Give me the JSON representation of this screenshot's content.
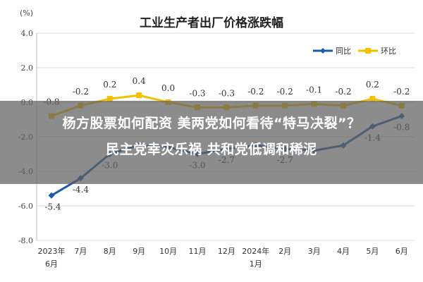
{
  "chart_data": {
    "type": "line",
    "title": "工业生产者出厂价格涨跌幅",
    "ylabel": "(%)",
    "ylim": [
      -8.0,
      4.0
    ],
    "yticks": [
      "4.0",
      "2.0",
      "0.0",
      "-2.0",
      "-4.0",
      "-6.0",
      "-8.0"
    ],
    "ytick_values": [
      4,
      2,
      0,
      -2,
      -4,
      -6,
      -8
    ],
    "categories": [
      "2023年6月",
      "7月",
      "8月",
      "9月",
      "10月",
      "11月",
      "12月",
      "2024年1月",
      "2月",
      "3月",
      "4月",
      "5月",
      "6月"
    ],
    "category_lines": [
      [
        "2023年",
        "6月"
      ],
      [
        "7月"
      ],
      [
        "8月"
      ],
      [
        "9月"
      ],
      [
        "10月"
      ],
      [
        "11月"
      ],
      [
        "12月"
      ],
      [
        "2024年",
        "1月"
      ],
      [
        "2月"
      ],
      [
        "3月"
      ],
      [
        "4月"
      ],
      [
        "5月"
      ],
      [
        "6月"
      ]
    ],
    "legend_position": "top-right",
    "series": [
      {
        "name": "同比",
        "color": "#1f5aa6",
        "values": [
          -5.4,
          -4.4,
          -3.0,
          -2.5,
          -2.6,
          -3.0,
          -2.7,
          -2.5,
          -2.7,
          -2.8,
          -2.5,
          -1.4,
          -0.8
        ],
        "labels": [
          "-5.4",
          "-4.4",
          "-3.0",
          "",
          "",
          "-3.0",
          "-2.7",
          "",
          "-2.7",
          "",
          "",
          "-1.4",
          "-0.8"
        ]
      },
      {
        "name": "环比",
        "color": "#f2c000",
        "values": [
          -0.8,
          -0.2,
          0.2,
          0.4,
          0.0,
          -0.3,
          -0.3,
          -0.2,
          -0.2,
          -0.1,
          -0.2,
          0.2,
          -0.2
        ],
        "labels": [
          "-0.8",
          "-0.2",
          "0.2",
          "0.4",
          "0.0",
          "-0.3",
          "-0.3",
          "-0.2",
          "-0.2",
          "-0.1",
          "-0.2",
          "0.2",
          "-0.2"
        ]
      }
    ]
  },
  "overlay": {
    "line1": "杨方股票如何配资 美两党如何看待“特马决裂”？",
    "line2": "民主党幸灾乐祸 共和党低调和稀泥"
  }
}
